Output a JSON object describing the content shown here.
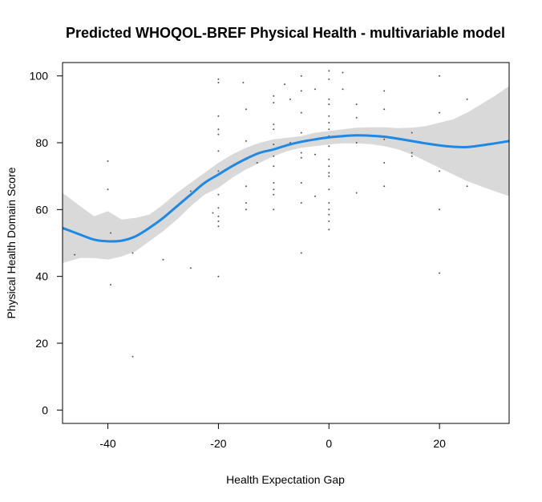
{
  "chart_data": {
    "type": "scatter",
    "title": "Predicted WHOQOL-BREF Physical Health - multivariable model",
    "xlabel": "Health Expectation Gap",
    "ylabel": "Physical Health Domain Score",
    "xlim": [
      -48.2,
      32.6
    ],
    "ylim": [
      -4,
      104
    ],
    "x_ticks": [
      -40,
      -20,
      0,
      20
    ],
    "y_ticks": [
      0,
      20,
      40,
      60,
      80,
      100
    ],
    "grid": false,
    "colors": {
      "line": "#1e88e5",
      "band": "#d9d9d9",
      "points": "#555555"
    },
    "points": [
      {
        "x": -46,
        "y": 46.5
      },
      {
        "x": -40,
        "y": 74.5
      },
      {
        "x": -40,
        "y": 66
      },
      {
        "x": -39.5,
        "y": 53
      },
      {
        "x": -39.5,
        "y": 37.5
      },
      {
        "x": -35.5,
        "y": 47
      },
      {
        "x": -35.5,
        "y": 16
      },
      {
        "x": -30,
        "y": 45
      },
      {
        "x": -25,
        "y": 42.5
      },
      {
        "x": -25,
        "y": 65.5
      },
      {
        "x": -21,
        "y": 59
      },
      {
        "x": -20,
        "y": 99
      },
      {
        "x": -20,
        "y": 98
      },
      {
        "x": -20,
        "y": 88
      },
      {
        "x": -20,
        "y": 84
      },
      {
        "x": -20,
        "y": 82.5
      },
      {
        "x": -20,
        "y": 77.5
      },
      {
        "x": -20,
        "y": 71.5
      },
      {
        "x": -20,
        "y": 64.5
      },
      {
        "x": -20,
        "y": 60.5
      },
      {
        "x": -20,
        "y": 58
      },
      {
        "x": -20,
        "y": 56.5
      },
      {
        "x": -20,
        "y": 55
      },
      {
        "x": -20,
        "y": 40
      },
      {
        "x": -15.5,
        "y": 98
      },
      {
        "x": -15,
        "y": 90
      },
      {
        "x": -15,
        "y": 80.5
      },
      {
        "x": -15,
        "y": 75
      },
      {
        "x": -15,
        "y": 67
      },
      {
        "x": -15,
        "y": 62
      },
      {
        "x": -15,
        "y": 60
      },
      {
        "x": -13,
        "y": 74
      },
      {
        "x": -10,
        "y": 94
      },
      {
        "x": -10,
        "y": 92
      },
      {
        "x": -10,
        "y": 85.5
      },
      {
        "x": -10,
        "y": 84
      },
      {
        "x": -10,
        "y": 79.5
      },
      {
        "x": -10,
        "y": 76
      },
      {
        "x": -10,
        "y": 73
      },
      {
        "x": -10,
        "y": 68
      },
      {
        "x": -10,
        "y": 66
      },
      {
        "x": -10,
        "y": 64.5
      },
      {
        "x": -10,
        "y": 60
      },
      {
        "x": -8,
        "y": 97.5
      },
      {
        "x": -7,
        "y": 93
      },
      {
        "x": -7,
        "y": 80
      },
      {
        "x": -5,
        "y": 100
      },
      {
        "x": -5,
        "y": 95.5
      },
      {
        "x": -5,
        "y": 89
      },
      {
        "x": -5,
        "y": 83
      },
      {
        "x": -5,
        "y": 77
      },
      {
        "x": -5,
        "y": 75.5
      },
      {
        "x": -5,
        "y": 68
      },
      {
        "x": -5,
        "y": 62
      },
      {
        "x": -5,
        "y": 47
      },
      {
        "x": -2.5,
        "y": 96
      },
      {
        "x": -2.5,
        "y": 76.5
      },
      {
        "x": -2.5,
        "y": 64
      },
      {
        "x": 0,
        "y": 101.5
      },
      {
        "x": 0,
        "y": 99
      },
      {
        "x": 0,
        "y": 93
      },
      {
        "x": 0,
        "y": 91.5
      },
      {
        "x": 0,
        "y": 88
      },
      {
        "x": 0,
        "y": 86
      },
      {
        "x": 0,
        "y": 84
      },
      {
        "x": 0,
        "y": 82
      },
      {
        "x": 0,
        "y": 79
      },
      {
        "x": 0,
        "y": 75
      },
      {
        "x": 0,
        "y": 73
      },
      {
        "x": 0,
        "y": 71
      },
      {
        "x": 0,
        "y": 70
      },
      {
        "x": 0,
        "y": 66
      },
      {
        "x": 0,
        "y": 62
      },
      {
        "x": 0,
        "y": 60
      },
      {
        "x": 0,
        "y": 58.5
      },
      {
        "x": 0,
        "y": 56.5
      },
      {
        "x": 0,
        "y": 54
      },
      {
        "x": 2.5,
        "y": 101
      },
      {
        "x": 2.5,
        "y": 96
      },
      {
        "x": 5,
        "y": 91.5
      },
      {
        "x": 5,
        "y": 87.5
      },
      {
        "x": 5,
        "y": 80
      },
      {
        "x": 5,
        "y": 65
      },
      {
        "x": 10,
        "y": 95.5
      },
      {
        "x": 10,
        "y": 90
      },
      {
        "x": 10,
        "y": 81
      },
      {
        "x": 10,
        "y": 74
      },
      {
        "x": 10,
        "y": 67
      },
      {
        "x": 15,
        "y": 83
      },
      {
        "x": 15,
        "y": 77
      },
      {
        "x": 15,
        "y": 76
      },
      {
        "x": 20,
        "y": 100
      },
      {
        "x": 20,
        "y": 89
      },
      {
        "x": 20,
        "y": 71.5
      },
      {
        "x": 20,
        "y": 60
      },
      {
        "x": 20,
        "y": 41
      },
      {
        "x": 25,
        "y": 93
      },
      {
        "x": 25,
        "y": 67
      }
    ],
    "fit": {
      "x": [
        -48.2,
        -45,
        -42.5,
        -40,
        -37.5,
        -35,
        -32.5,
        -30,
        -27.5,
        -25,
        -22.5,
        -20,
        -17.5,
        -15,
        -12.5,
        -10,
        -7.5,
        -5,
        -2.5,
        0,
        2.5,
        5,
        7.5,
        10,
        12.5,
        15,
        17.5,
        20,
        22.5,
        25,
        27.5,
        30,
        32.6
      ],
      "y": [
        54.5,
        52.5,
        51,
        50.5,
        50.7,
        52,
        54.5,
        57.5,
        61,
        64.5,
        68,
        70.5,
        73,
        75.2,
        77,
        78,
        79.3,
        80.3,
        81,
        81.6,
        82,
        82.2,
        82.1,
        81.8,
        81.2,
        80.5,
        79.8,
        79.2,
        78.8,
        78.7,
        79.2,
        79.8,
        80.5
      ],
      "lower": [
        44,
        45.5,
        45.5,
        45,
        46,
        47.5,
        50.5,
        53.5,
        57,
        61,
        64.5,
        66.5,
        69.5,
        72,
        74,
        76,
        77.5,
        78.5,
        79,
        79.5,
        79.8,
        79.8,
        79.6,
        79,
        78,
        76.5,
        74.5,
        72.5,
        70.5,
        68.5,
        67,
        65.5,
        64
      ],
      "upper": [
        65,
        61,
        58,
        59.5,
        57,
        57.5,
        58.5,
        61.5,
        65,
        68,
        71,
        74,
        76.5,
        78.5,
        80,
        81,
        81.5,
        82,
        83,
        83.5,
        84,
        84.5,
        84.6,
        84.6,
        84.4,
        84.5,
        85,
        86,
        87,
        89,
        91.5,
        94,
        97
      ]
    }
  }
}
